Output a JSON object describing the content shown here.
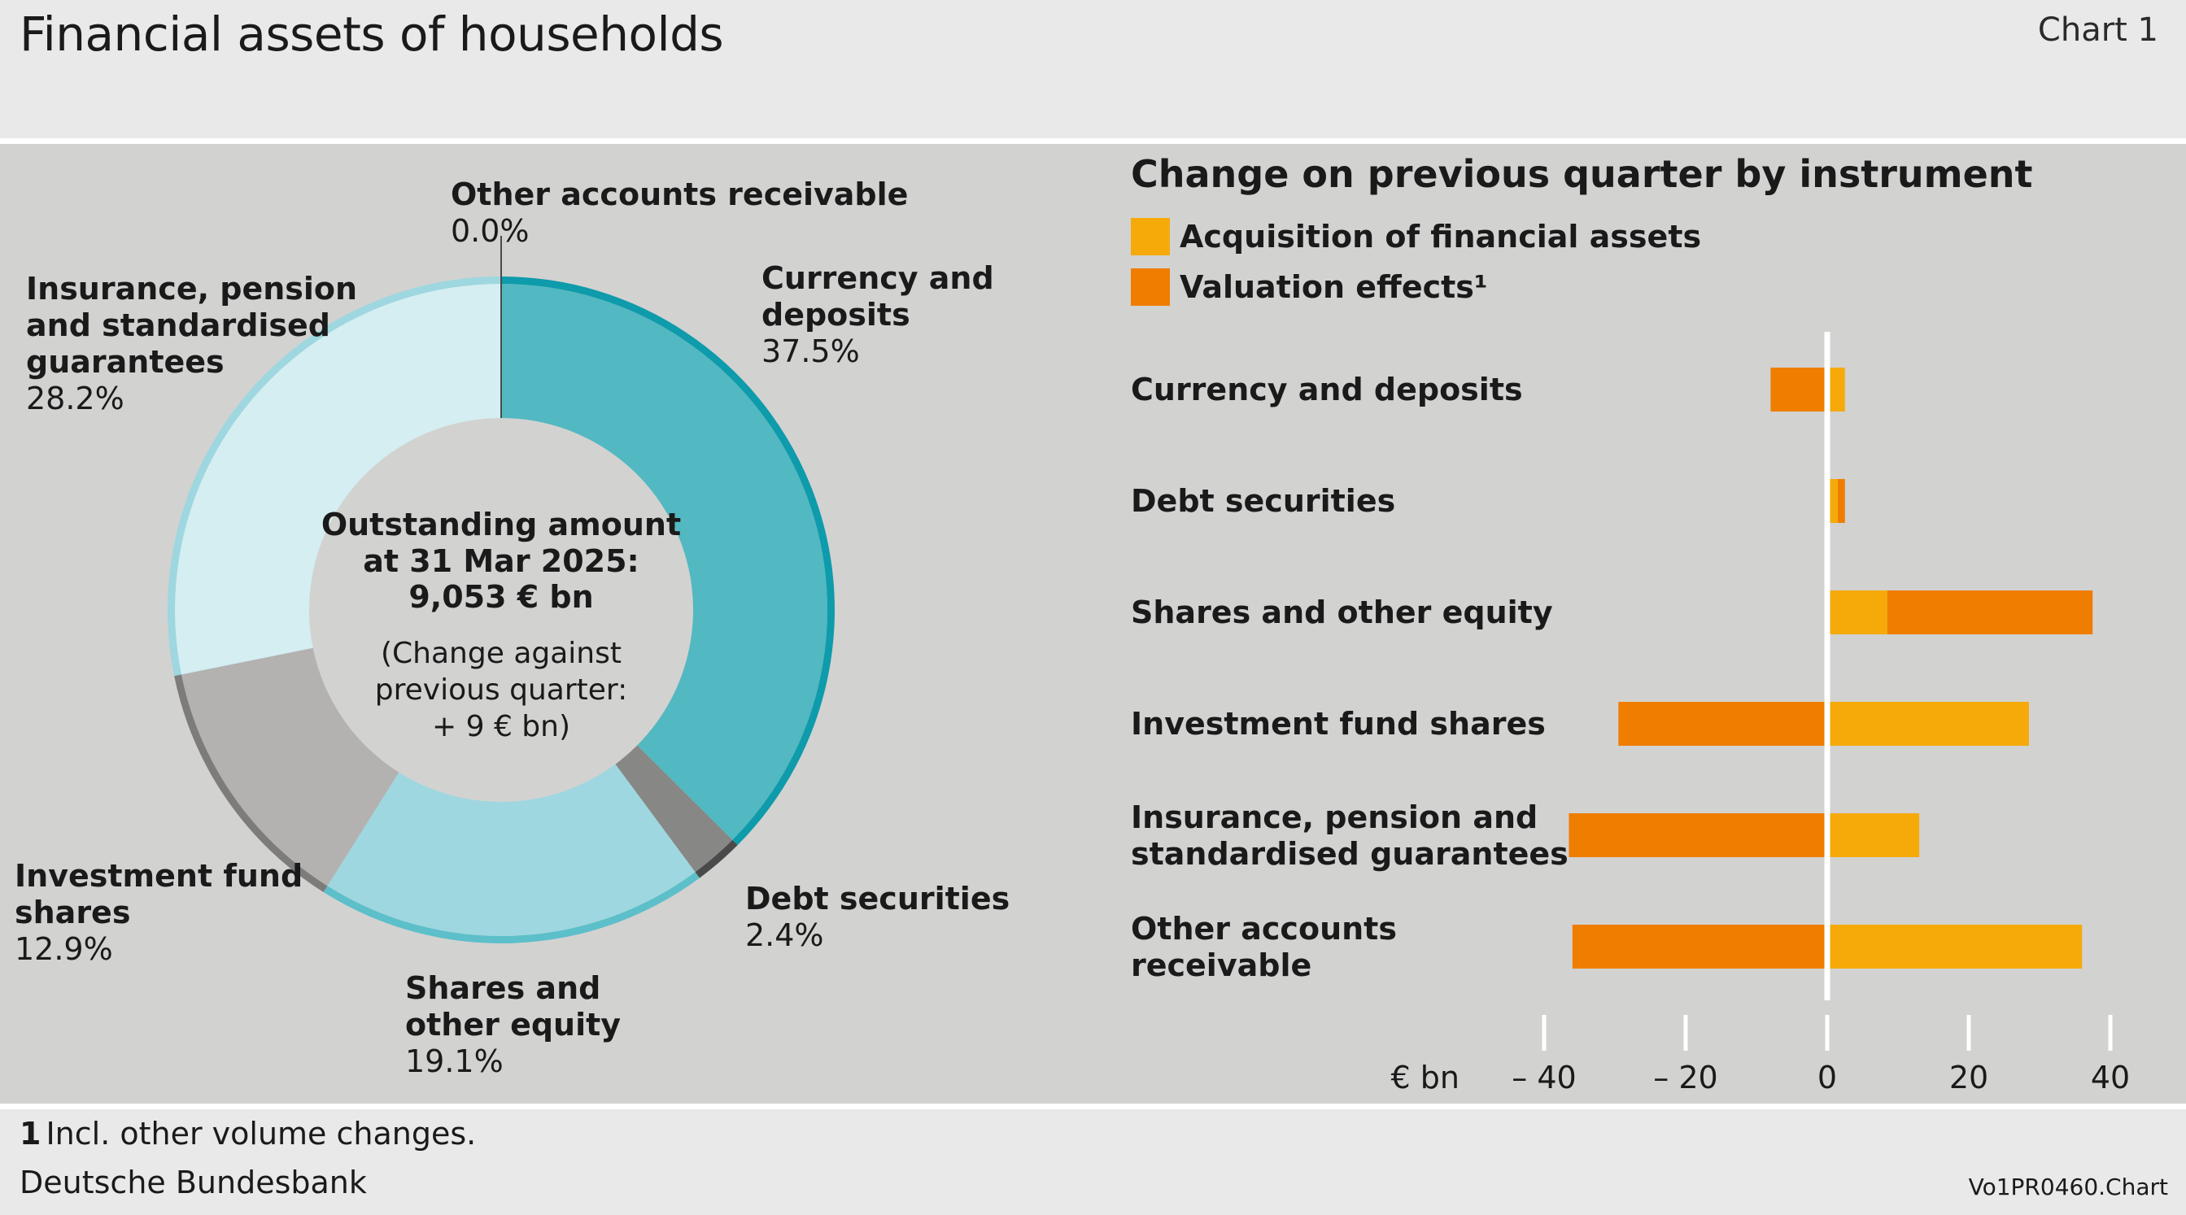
{
  "header": {
    "title": "Financial assets of households",
    "chart_number": "Chart 1"
  },
  "footer": {
    "footnote_number": "1",
    "footnote_text": "Incl. other volume changes.",
    "source": "Deutsche Bundesbank",
    "code": "Vo1PR0460.Chart"
  },
  "colors": {
    "currency": "#52b8c1",
    "currency_ring": "#0e9bab",
    "debt": "#878786",
    "debt_ring": "#4a4a4a",
    "shares": "#9ed7df",
    "shares_ring": "#5cbfca",
    "investment": "#b3b2b1",
    "investment_ring": "#7d7c7b",
    "insurance": "#d4eef2",
    "insurance_ring": "#9ed7df",
    "acquisition": "#f5aa0a",
    "valuation": "#ef7d00"
  },
  "chart_data": [
    {
      "type": "pie",
      "variant": "donut",
      "title": "",
      "center_text": {
        "line1": "Outstanding amount",
        "line2": "at 31 Mar 2025:",
        "line3": "9,053 € bn",
        "line4": "(Change against",
        "line5": "previous quarter:",
        "line6": "+ 9 € bn)"
      },
      "slices": [
        {
          "name": "Currency and deposits",
          "value": 37.5,
          "label_lines": [
            "Currency and",
            "deposits"
          ],
          "pct": "37.5%"
        },
        {
          "name": "Debt securities",
          "value": 2.4,
          "label_lines": [
            "Debt securities"
          ],
          "pct": "2.4%"
        },
        {
          "name": "Shares and other equity",
          "value": 19.1,
          "label_lines": [
            "Shares and",
            "other equity"
          ],
          "pct": "19.1%"
        },
        {
          "name": "Investment fund shares",
          "value": 12.9,
          "label_lines": [
            "Investment fund",
            "shares"
          ],
          "pct": "12.9%"
        },
        {
          "name": "Insurance, pension and standardised guarantees",
          "value": 28.2,
          "label_lines": [
            "Insurance, pension",
            "and standardised",
            "guarantees"
          ],
          "pct": "28.2%"
        },
        {
          "name": "Other accounts receivable",
          "value": 0.0,
          "label_lines": [
            "Other accounts receivable"
          ],
          "pct": "0.0%"
        }
      ]
    },
    {
      "type": "bar",
      "orientation": "horizontal",
      "stacked": true,
      "title": "Change on previous quarter by instrument",
      "unit_label": "€ bn",
      "xlim": [
        -44,
        44
      ],
      "xticks": [
        -40,
        -20,
        0,
        20,
        40
      ],
      "xtick_labels": [
        "– 40",
        "– 20",
        "0",
        "20",
        "40"
      ],
      "legend_position": "top-left",
      "categories": [
        [
          "Currency and deposits"
        ],
        [
          "Debt securities"
        ],
        [
          "Shares and other equity"
        ],
        [
          "Investment fund shares"
        ],
        [
          "Insurance, pension and",
          "standardised guarantees"
        ],
        [
          "Other accounts",
          "receivable"
        ]
      ],
      "series": [
        {
          "name": "Acquisition of financial assets",
          "values": [
            2.5,
            1.5,
            8.5,
            28.5,
            13,
            36
          ]
        },
        {
          "name": "Valuation effects¹",
          "values": [
            -8,
            1,
            29,
            -29.5,
            -36.5,
            -36
          ]
        }
      ]
    }
  ]
}
